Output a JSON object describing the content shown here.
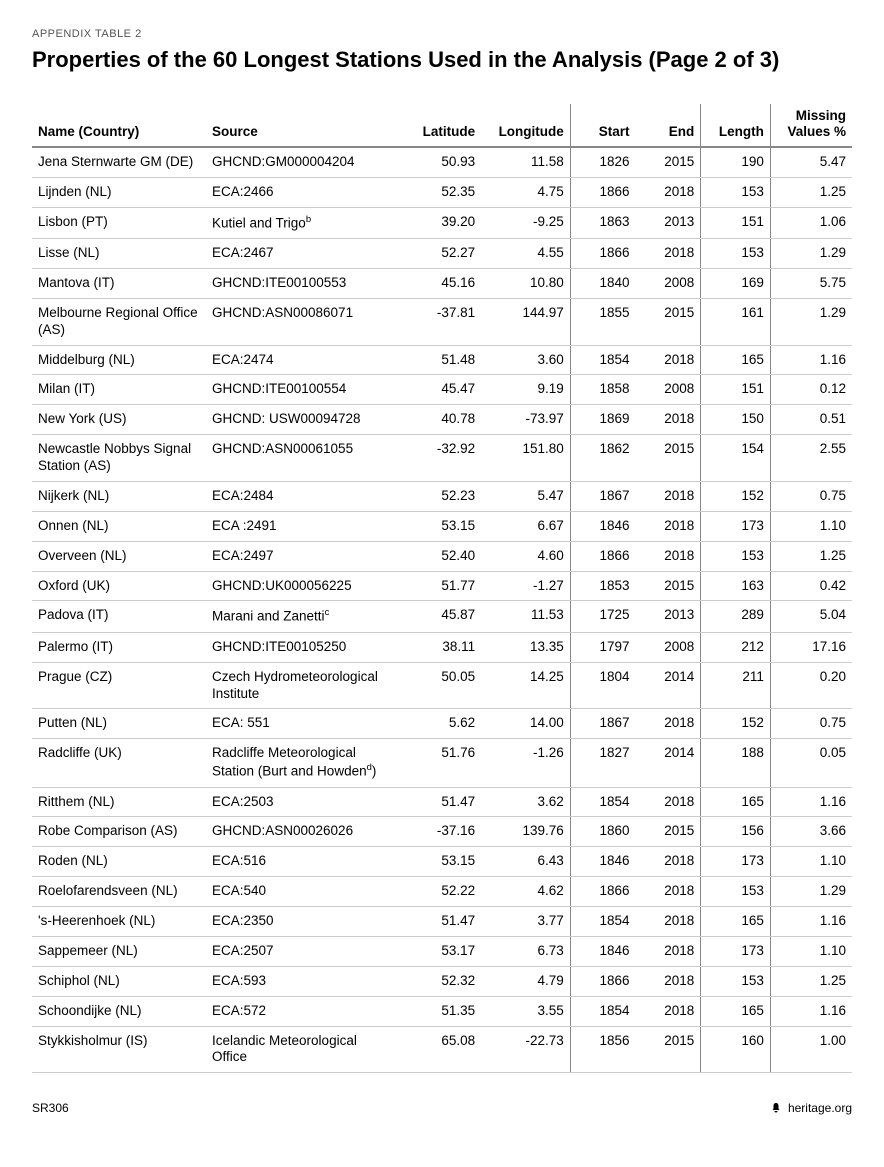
{
  "preTitle": "APPENDIX TABLE 2",
  "title": "Properties of the 60 Longest Stations Used in the Analysis (Page 2 of 3)",
  "columns": [
    "Name (Country)",
    "Source",
    "Latitude",
    "Longitude",
    "Start",
    "End",
    "Length",
    "Missing Values %"
  ],
  "rows": [
    {
      "name": "Jena Sternwarte GM (DE)",
      "source": "GHCND:GM000004204",
      "lat": "50.93",
      "lon": "11.58",
      "start": "1826",
      "end": "2015",
      "len": "190",
      "miss": "5.47"
    },
    {
      "name": "Lijnden (NL)",
      "source": "ECA:2466",
      "lat": "52.35",
      "lon": "4.75",
      "start": "1866",
      "end": "2018",
      "len": "153",
      "miss": "1.25"
    },
    {
      "name": "Lisbon (PT)",
      "source": "Kutiel and Trigo",
      "source_sup": "b",
      "lat": "39.20",
      "lon": "-9.25",
      "start": "1863",
      "end": "2013",
      "len": "151",
      "miss": "1.06"
    },
    {
      "name": "Lisse (NL)",
      "source": "ECA:2467",
      "lat": "52.27",
      "lon": "4.55",
      "start": "1866",
      "end": "2018",
      "len": "153",
      "miss": "1.29"
    },
    {
      "name": "Mantova (IT)",
      "source": "GHCND:ITE00100553",
      "lat": "45.16",
      "lon": "10.80",
      "start": "1840",
      "end": "2008",
      "len": "169",
      "miss": "5.75"
    },
    {
      "name": "Melbourne Regional Office (AS)",
      "source": "GHCND:ASN00086071",
      "lat": "-37.81",
      "lon": "144.97",
      "start": "1855",
      "end": "2015",
      "len": "161",
      "miss": "1.29"
    },
    {
      "name": "Middelburg (NL)",
      "source": "ECA:2474",
      "lat": "51.48",
      "lon": "3.60",
      "start": "1854",
      "end": "2018",
      "len": "165",
      "miss": "1.16"
    },
    {
      "name": "Milan (IT)",
      "source": "GHCND:ITE00100554",
      "lat": "45.47",
      "lon": "9.19",
      "start": "1858",
      "end": "2008",
      "len": "151",
      "miss": "0.12"
    },
    {
      "name": "New York (US)",
      "source": "GHCND: USW00094728",
      "lat": "40.78",
      "lon": "-73.97",
      "start": "1869",
      "end": "2018",
      "len": "150",
      "miss": "0.51"
    },
    {
      "name": "Newcastle Nobbys Signal Station (AS)",
      "source": "GHCND:ASN00061055",
      "lat": "-32.92",
      "lon": "151.80",
      "start": "1862",
      "end": "2015",
      "len": "154",
      "miss": "2.55"
    },
    {
      "name": "Nijkerk (NL)",
      "source": "ECA:2484",
      "lat": "52.23",
      "lon": "5.47",
      "start": "1867",
      "end": "2018",
      "len": "152",
      "miss": "0.75"
    },
    {
      "name": "Onnen (NL)",
      "source": "ECA :2491",
      "lat": "53.15",
      "lon": "6.67",
      "start": "1846",
      "end": "2018",
      "len": "173",
      "miss": "1.10"
    },
    {
      "name": "Overveen (NL)",
      "source": "ECA:2497",
      "lat": "52.40",
      "lon": "4.60",
      "start": "1866",
      "end": "2018",
      "len": "153",
      "miss": "1.25"
    },
    {
      "name": "Oxford (UK)",
      "source": "GHCND:UK000056225",
      "lat": "51.77",
      "lon": "-1.27",
      "start": "1853",
      "end": "2015",
      "len": "163",
      "miss": "0.42"
    },
    {
      "name": "Padova (IT)",
      "source": "Marani and Zanetti",
      "source_sup": "c",
      "lat": "45.87",
      "lon": "11.53",
      "start": "1725",
      "end": "2013",
      "len": "289",
      "miss": "5.04"
    },
    {
      "name": "Palermo (IT)",
      "source": "GHCND:ITE00105250",
      "lat": "38.11",
      "lon": "13.35",
      "start": "1797",
      "end": "2008",
      "len": "212",
      "miss": "17.16"
    },
    {
      "name": "Prague (CZ)",
      "source": "Czech Hydrometeorologi­cal Institute",
      "lat": "50.05",
      "lon": "14.25",
      "start": "1804",
      "end": "2014",
      "len": "211",
      "miss": "0.20"
    },
    {
      "name": "Putten (NL)",
      "source": "ECA: 551",
      "lat": "5.62",
      "lon": "14.00",
      "start": "1867",
      "end": "2018",
      "len": "152",
      "miss": "0.75"
    },
    {
      "name": "Radcliffe (UK)",
      "source": "Radcliffe Meteorological Station (Burt and How­den",
      "source_sup": "d",
      "source_suffix": ")",
      "lat": "51.76",
      "lon": "-1.26",
      "start": "1827",
      "end": "2014",
      "len": "188",
      "miss": "0.05"
    },
    {
      "name": "Ritthem (NL)",
      "source": "ECA:2503",
      "lat": "51.47",
      "lon": "3.62",
      "start": "1854",
      "end": "2018",
      "len": "165",
      "miss": "1.16"
    },
    {
      "name": "Robe Comparison (AS)",
      "source": "GHCND:ASN00026026",
      "lat": "-37.16",
      "lon": "139.76",
      "start": "1860",
      "end": "2015",
      "len": "156",
      "miss": "3.66"
    },
    {
      "name": "Roden (NL)",
      "source": "ECA:516",
      "lat": "53.15",
      "lon": "6.43",
      "start": "1846",
      "end": "2018",
      "len": "173",
      "miss": "1.10"
    },
    {
      "name": "Roelofarendsveen (NL)",
      "source": "ECA:540",
      "lat": "52.22",
      "lon": "4.62",
      "start": "1866",
      "end": "2018",
      "len": "153",
      "miss": "1.29"
    },
    {
      "name": "'s-Heerenhoek (NL)",
      "source": "ECA:2350",
      "lat": "51.47",
      "lon": "3.77",
      "start": "1854",
      "end": "2018",
      "len": "165",
      "miss": "1.16"
    },
    {
      "name": "Sappemeer (NL)",
      "source": "ECA:2507",
      "lat": "53.17",
      "lon": "6.73",
      "start": "1846",
      "end": "2018",
      "len": "173",
      "miss": "1.10"
    },
    {
      "name": "Schiphol (NL)",
      "source": "ECA:593",
      "lat": "52.32",
      "lon": "4.79",
      "start": "1866",
      "end": "2018",
      "len": "153",
      "miss": "1.25"
    },
    {
      "name": "Schoondijke (NL)",
      "source": "ECA:572",
      "lat": "51.35",
      "lon": "3.55",
      "start": "1854",
      "end": "2018",
      "len": "165",
      "miss": "1.16"
    },
    {
      "name": "Stykkisholmur (IS)",
      "source": "Icelandic Meteorological Office",
      "lat": "65.08",
      "lon": "-22.73",
      "start": "1856",
      "end": "2015",
      "len": "160",
      "miss": "1.00"
    }
  ],
  "footer": {
    "left": "SR306",
    "right": "heritage.org"
  }
}
